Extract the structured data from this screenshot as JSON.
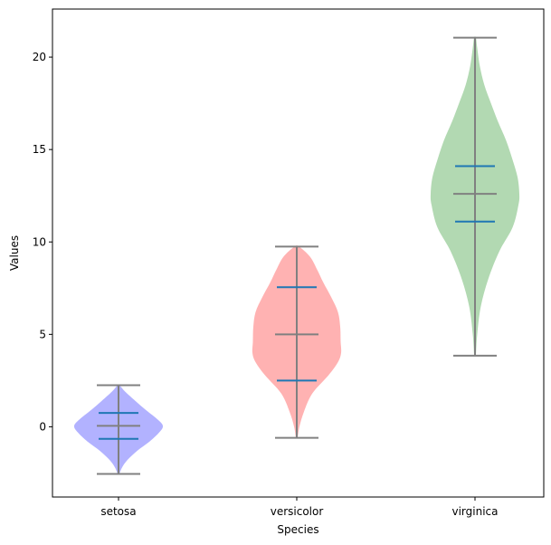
{
  "chart_data": {
    "type": "violin",
    "title": "",
    "xlabel": "Species",
    "ylabel": "Values",
    "ylim": [
      -3.8,
      22.6
    ],
    "yticks": [
      0,
      5,
      10,
      15,
      20
    ],
    "grid": false,
    "categories": [
      "setosa",
      "versicolor",
      "virginica"
    ],
    "series": [
      {
        "name": "setosa",
        "color": "#b2b2ff",
        "min": -2.55,
        "max": 2.25,
        "median": 0.05,
        "q1": -0.65,
        "q3": 0.75,
        "density": [
          [
            -2.55,
            0.02
          ],
          [
            -2.2,
            0.08
          ],
          [
            -1.8,
            0.2
          ],
          [
            -1.3,
            0.42
          ],
          [
            -0.8,
            0.7
          ],
          [
            -0.3,
            0.92
          ],
          [
            0.05,
            1.0
          ],
          [
            0.4,
            0.88
          ],
          [
            0.9,
            0.62
          ],
          [
            1.4,
            0.38
          ],
          [
            1.9,
            0.15
          ],
          [
            2.25,
            0.02
          ]
        ]
      },
      {
        "name": "versicolor",
        "color": "#ffb2b2",
        "min": -0.6,
        "max": 9.75,
        "median": 5.0,
        "q1": 2.5,
        "q3": 7.55,
        "density": [
          [
            -0.6,
            0.02
          ],
          [
            0.0,
            0.06
          ],
          [
            0.8,
            0.16
          ],
          [
            1.8,
            0.35
          ],
          [
            2.8,
            0.72
          ],
          [
            3.5,
            0.93
          ],
          [
            4.0,
            1.0
          ],
          [
            4.6,
            0.99
          ],
          [
            5.4,
            0.98
          ],
          [
            6.2,
            0.93
          ],
          [
            7.0,
            0.78
          ],
          [
            7.8,
            0.6
          ],
          [
            8.5,
            0.46
          ],
          [
            9.2,
            0.3
          ],
          [
            9.75,
            0.05
          ]
        ]
      },
      {
        "name": "virginica",
        "color": "#b2d9b2",
        "min": 3.85,
        "max": 21.05,
        "median": 12.6,
        "q1": 11.1,
        "q3": 14.1,
        "density": [
          [
            3.85,
            0.02
          ],
          [
            5.0,
            0.05
          ],
          [
            6.5,
            0.13
          ],
          [
            8.0,
            0.3
          ],
          [
            9.5,
            0.55
          ],
          [
            10.8,
            0.85
          ],
          [
            12.0,
            0.98
          ],
          [
            12.6,
            1.0
          ],
          [
            13.5,
            0.96
          ],
          [
            14.5,
            0.84
          ],
          [
            15.5,
            0.7
          ],
          [
            16.5,
            0.52
          ],
          [
            17.5,
            0.36
          ],
          [
            18.5,
            0.21
          ],
          [
            19.5,
            0.11
          ],
          [
            20.5,
            0.05
          ],
          [
            21.05,
            0.02
          ]
        ]
      }
    ],
    "colors": {
      "extrema_line": "#808080",
      "median_line": "#808080",
      "quartile_line": "#1f77b4"
    }
  }
}
